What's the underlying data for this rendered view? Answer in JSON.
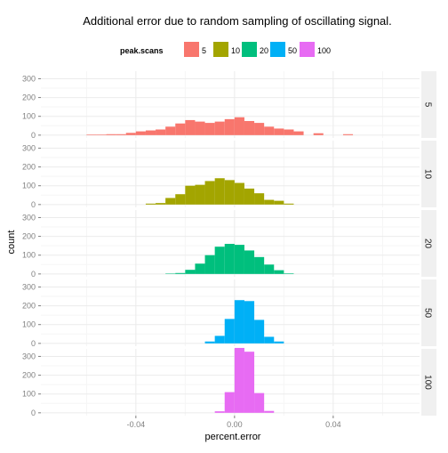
{
  "chart_data": {
    "type": "histogram-facet",
    "title": "Additional error due to random sampling of oscillating signal.",
    "xlabel": "percent.error",
    "ylabel": "count",
    "xlim": [
      -0.0785,
      0.075
    ],
    "ylim": [
      -15,
      340
    ],
    "x_ticks": [
      -0.04,
      0.0,
      0.04
    ],
    "x_tick_labels": [
      "-0.04",
      "0.00",
      "0.04"
    ],
    "y_ticks": [
      0,
      100,
      200,
      300
    ],
    "y_tick_labels": [
      "0",
      "100",
      "200",
      "300"
    ],
    "legend": {
      "title": "peak.scans",
      "position": "top",
      "items": [
        {
          "label": "5",
          "color": "#F8766D"
        },
        {
          "label": "10",
          "color": "#A3A500"
        },
        {
          "label": "20",
          "color": "#00BF7D"
        },
        {
          "label": "50",
          "color": "#00B0F6"
        },
        {
          "label": "100",
          "color": "#E76BF3"
        }
      ]
    },
    "bin_width": 0.004,
    "bin_start": -0.06,
    "series": [
      {
        "name": "5",
        "strip_label": "5",
        "color": "#F8766D",
        "values": [
          3,
          3,
          5,
          5,
          12,
          20,
          25,
          30,
          45,
          62,
          80,
          72,
          65,
          72,
          85,
          95,
          75,
          65,
          45,
          35,
          30,
          20,
          0,
          10,
          0,
          0,
          5,
          0,
          0,
          0
        ]
      },
      {
        "name": "10",
        "strip_label": "10",
        "color": "#A3A500",
        "values": [
          0,
          0,
          0,
          0,
          0,
          0,
          5,
          8,
          35,
          55,
          100,
          105,
          125,
          140,
          130,
          115,
          85,
          60,
          25,
          20,
          5,
          0,
          0,
          0,
          0,
          0,
          0,
          0,
          0,
          0
        ]
      },
      {
        "name": "20",
        "strip_label": "20",
        "color": "#00BF7D",
        "values": [
          0,
          0,
          0,
          0,
          0,
          0,
          0,
          0,
          2,
          5,
          22,
          55,
          100,
          145,
          160,
          155,
          125,
          90,
          50,
          20,
          3,
          0,
          0,
          0,
          0,
          0,
          0,
          0,
          0,
          0
        ]
      },
      {
        "name": "50",
        "strip_label": "50",
        "color": "#00B0F6",
        "values": [
          0,
          0,
          0,
          0,
          0,
          0,
          0,
          0,
          0,
          0,
          0,
          0,
          10,
          40,
          130,
          230,
          225,
          125,
          35,
          10,
          0,
          0,
          0,
          0,
          0,
          0,
          0,
          0,
          0,
          0
        ]
      },
      {
        "name": "100",
        "strip_label": "100",
        "color": "#E76BF3",
        "values": [
          0,
          0,
          0,
          0,
          0,
          0,
          0,
          0,
          0,
          0,
          0,
          0,
          0,
          8,
          110,
          345,
          325,
          105,
          10,
          0,
          0,
          0,
          0,
          0,
          0,
          0,
          0,
          0,
          0,
          0
        ]
      }
    ]
  }
}
